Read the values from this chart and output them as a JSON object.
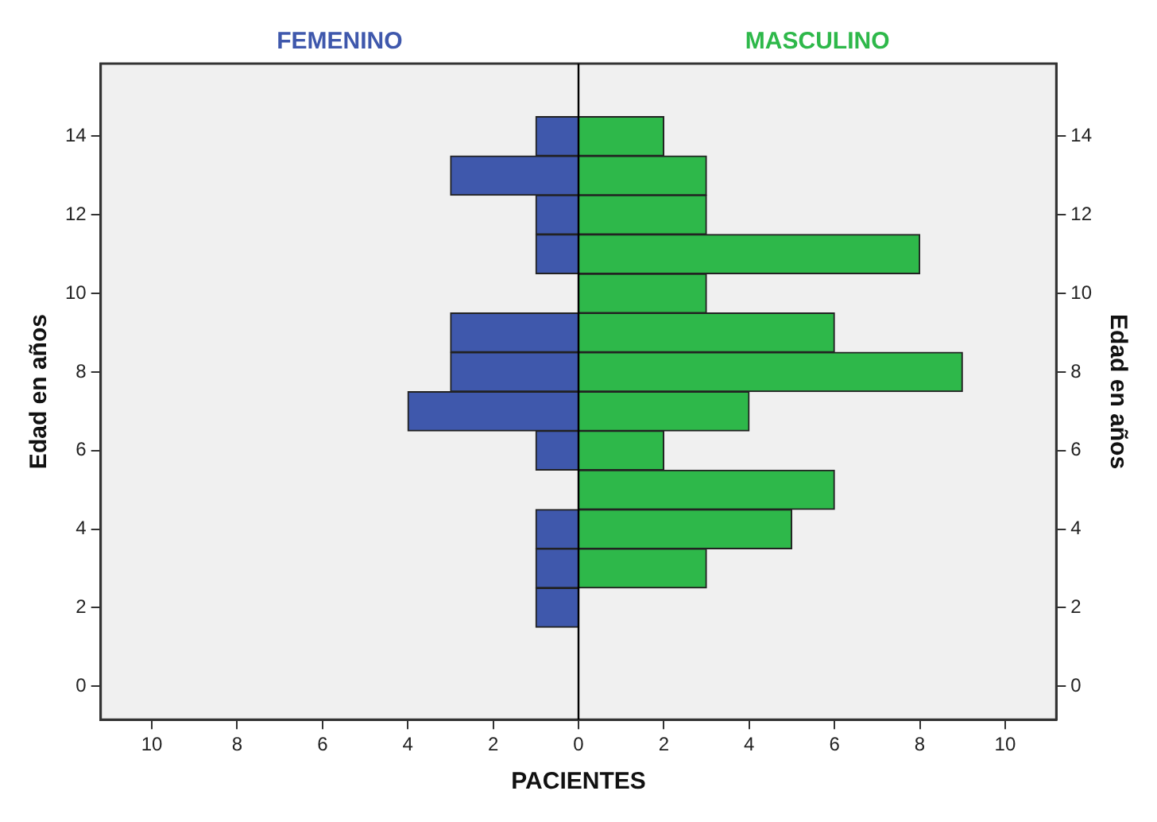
{
  "chart_data": {
    "type": "bar",
    "orientation": "horizontal",
    "stacked": true,
    "xlabel": "PACIENTES",
    "ylabel": "Edad en años",
    "y2label": "Edad en años",
    "x": [
      2,
      3,
      4,
      5,
      6,
      7,
      8,
      9,
      10,
      11,
      12,
      13,
      14
    ],
    "series": [
      {
        "name": "FEMENINO",
        "color": "#3f58ac",
        "values": [
          -1,
          -1,
          -1,
          0,
          -1,
          -4,
          -3,
          -3,
          0,
          -1,
          -1,
          -3,
          -1
        ]
      },
      {
        "name": "MASCULINO",
        "color": "#2eb84a",
        "values": [
          0,
          3,
          5,
          6,
          2,
          4,
          9,
          6,
          3,
          8,
          3,
          3,
          2
        ]
      }
    ],
    "xlim": [
      -11.2,
      11.2
    ],
    "xticks": [
      {
        "value": -10,
        "label": "10"
      },
      {
        "value": -8,
        "label": "8"
      },
      {
        "value": -6,
        "label": "6"
      },
      {
        "value": -4,
        "label": "4"
      },
      {
        "value": -2,
        "label": "2"
      },
      0,
      2,
      4,
      6,
      8,
      10
    ],
    "ylim": [
      -0.85,
      15.85
    ],
    "yticks": [
      0,
      2,
      4,
      6,
      8,
      10,
      12,
      14
    ],
    "y2lim": [
      -0.85,
      15.85
    ],
    "y2ticks": [
      0,
      2,
      4,
      6,
      8,
      10,
      12,
      14
    ],
    "ref_lines": [
      {
        "axis": "x",
        "value": 0
      }
    ],
    "grid": false,
    "legend": false
  }
}
